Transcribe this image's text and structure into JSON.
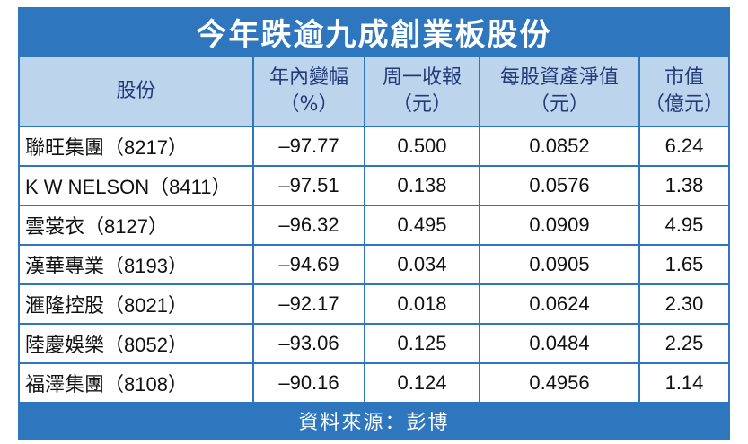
{
  "title": "今年跌逾九成創業板股份",
  "headers": [
    {
      "line1": "股份",
      "line2": ""
    },
    {
      "line1": "年內變幅",
      "line2": "（%）"
    },
    {
      "line1": "周一收報",
      "line2": "（元）"
    },
    {
      "line1": "每股資產淨值",
      "line2": "（元）"
    },
    {
      "line1": "市值",
      "line2": "（億元）"
    }
  ],
  "rows": [
    {
      "name": "聯旺集團（8217）",
      "change": "–97.77",
      "close": "0.500",
      "nav": "0.0852",
      "cap": "6.24"
    },
    {
      "name": "K W NELSON（8411）",
      "change": "–97.51",
      "close": "0.138",
      "nav": "0.0576",
      "cap": "1.38"
    },
    {
      "name": "雲裳衣（8127）",
      "change": "–96.32",
      "close": "0.495",
      "nav": "0.0909",
      "cap": "4.95"
    },
    {
      "name": "漢華專業（8193）",
      "change": "–94.69",
      "close": "0.034",
      "nav": "0.0905",
      "cap": "1.65"
    },
    {
      "name": "滙隆控股（8021）",
      "change": "–92.17",
      "close": "0.018",
      "nav": "0.0624",
      "cap": "2.30"
    },
    {
      "name": "陸慶娛樂（8052）",
      "change": "–93.06",
      "close": "0.125",
      "nav": "0.0484",
      "cap": "2.25"
    },
    {
      "name": "福澤集團（8108）",
      "change": "–90.16",
      "close": "0.124",
      "nav": "0.4956",
      "cap": "1.14"
    }
  ],
  "source": "資料來源：彭博",
  "colors": {
    "frame": "#2e76bd",
    "header_bg": "#bcd4ec",
    "header_text": "#233a78"
  }
}
